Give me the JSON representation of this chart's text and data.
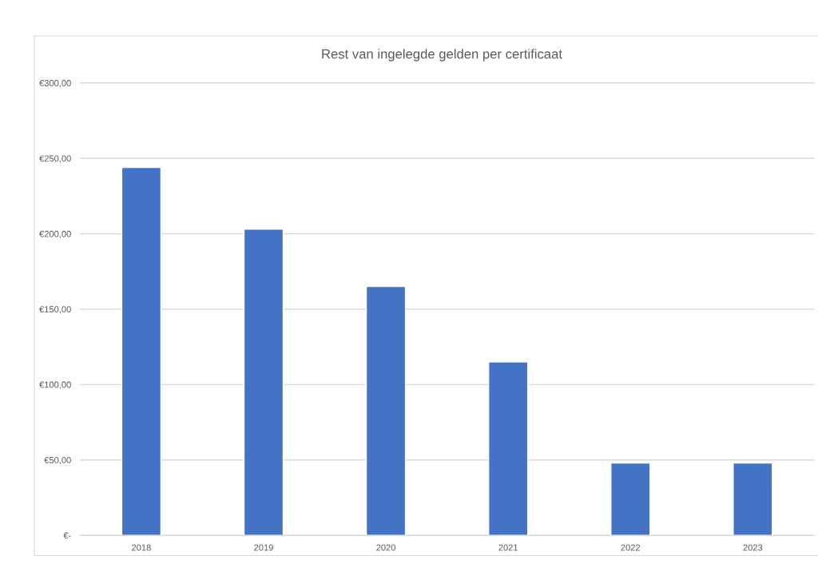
{
  "chart_data": {
    "type": "bar",
    "title": "Rest van ingelegde gelden per certificaat",
    "categories": [
      "2018",
      "2019",
      "2020",
      "2021",
      "2022",
      "2023"
    ],
    "values": [
      244,
      203,
      165,
      115,
      48,
      48
    ],
    "color": "#4472c4",
    "ylim": [
      0,
      300
    ],
    "yticks": [
      {
        "value": 0,
        "label": "€-"
      },
      {
        "value": 50,
        "label": "€50,00"
      },
      {
        "value": 100,
        "label": "€100,00"
      },
      {
        "value": 150,
        "label": "€150,00"
      },
      {
        "value": 200,
        "label": "€200,00"
      },
      {
        "value": 250,
        "label": "€250,00"
      },
      {
        "value": 300,
        "label": "€300,00"
      }
    ],
    "grid": "y",
    "legend": false
  }
}
